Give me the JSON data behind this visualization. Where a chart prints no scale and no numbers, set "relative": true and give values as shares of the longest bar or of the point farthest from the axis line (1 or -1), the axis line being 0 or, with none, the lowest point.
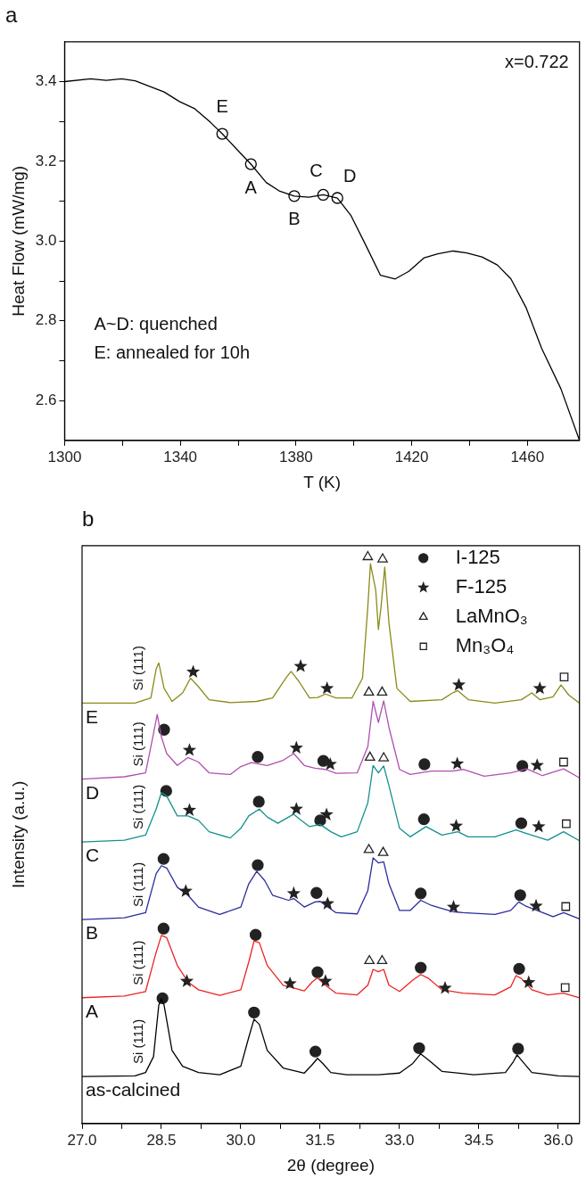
{
  "chart_data": [
    {
      "type": "line",
      "title": "a",
      "xlabel": "T (K)",
      "ylabel": "Heat Flow (mW/mg)",
      "xlim": [
        1300,
        1478
      ],
      "ylim": [
        2.5,
        3.5
      ],
      "xticks": [
        1300,
        {
          "value": 1320,
          "label": null
        },
        1340,
        {
          "value": 1360,
          "label": null
        },
        1380,
        {
          "value": 1400,
          "label": null
        },
        1420,
        {
          "value": 1440,
          "label": null
        },
        1460
      ],
      "yticks": [
        2.6,
        {
          "value": 2.7,
          "label": null
        },
        2.8,
        {
          "value": 2.9,
          "label": null
        },
        {
          "value": 3.0,
          "label": "3.0"
        },
        {
          "value": 3.1,
          "label": null
        },
        3.2,
        {
          "value": 3.3,
          "label": null
        },
        3.4
      ],
      "series": [
        {
          "color": "#000000",
          "x": [
            1300,
            1309,
            1314.4,
            1319.7,
            1324.4,
            1334.4,
            1339.7,
            1345,
            1350.4,
            1354.5,
            1359.7,
            1364.4,
            1369.7,
            1374.4,
            1379.4,
            1384.4,
            1389.4,
            1394.3,
            1399,
            1404.3,
            1409.2,
            1414.3,
            1419,
            1424.3,
            1429,
            1434.3,
            1439,
            1444.3,
            1449.6,
            1454.3,
            1459.6,
            1464.9,
            1471.6,
            1478
          ],
          "values": [
            3.4,
            3.407,
            3.403,
            3.407,
            3.402,
            3.374,
            3.35,
            3.332,
            3.298,
            3.269,
            3.229,
            3.193,
            3.147,
            3.125,
            3.113,
            3.11,
            3.116,
            3.108,
            3.064,
            2.987,
            2.914,
            2.905,
            2.924,
            2.958,
            2.968,
            2.975,
            2.97,
            2.96,
            2.94,
            2.905,
            2.832,
            2.731,
            2.629,
            2.5
          ]
        },
        {
          "type": "scatter",
          "marker": "circle",
          "color": "#000000",
          "x": [
            1354.5,
            1364.4,
            1379.4,
            1389.4,
            1394.3
          ],
          "values": [
            3.269,
            3.193,
            3.113,
            3.116,
            3.108
          ]
        }
      ],
      "annotations": [
        "x=0.722",
        "A~D: quenched",
        "E: annealed for 10h",
        "E",
        "A",
        "B",
        "C",
        "D"
      ]
    },
    {
      "type": "line",
      "title": "b",
      "xlabel": "2θ (degree)",
      "ylabel": "Intensity (a.u.)",
      "relative": true,
      "legend": "top right",
      "xlim": [
        27,
        36.4
      ],
      "xticks": [
        {
          "value": 27,
          "label": "27.0"
        },
        {
          "value": 27.75,
          "label": null
        },
        28.5,
        {
          "value": 29.25,
          "label": null
        },
        {
          "value": 30,
          "label": "30.0"
        },
        {
          "value": 30.75,
          "label": null
        },
        31.5,
        {
          "value": 32.25,
          "label": null
        },
        {
          "value": 33,
          "label": "33.0"
        },
        {
          "value": 33.75,
          "label": null
        },
        34.5,
        {
          "value": 35.25,
          "label": null
        },
        {
          "value": 36,
          "label": "36.0"
        }
      ],
      "series": [
        {
          "name": "E",
          "color": "#8a8a1a",
          "x": [
            27.0,
            28.0,
            28.3,
            28.4,
            28.45,
            28.55,
            28.7,
            28.9,
            29.05,
            29.2,
            29.4,
            29.8,
            30.3,
            30.6,
            30.85,
            30.95,
            31.1,
            31.3,
            31.45,
            31.6,
            31.8,
            32.1,
            32.3,
            32.4,
            32.45,
            32.55,
            32.6,
            32.65,
            32.72,
            32.8,
            32.95,
            33.2,
            33.8,
            34.0,
            34.1,
            34.3,
            34.8,
            35.3,
            35.5,
            35.65,
            35.9,
            36.05,
            36.2,
            36.4
          ],
          "values": [
            0.742,
            0.742,
            0.751,
            0.802,
            0.813,
            0.768,
            0.745,
            0.76,
            0.786,
            0.771,
            0.748,
            0.743,
            0.745,
            0.751,
            0.786,
            0.798,
            0.78,
            0.751,
            0.752,
            0.758,
            0.751,
            0.751,
            0.786,
            0.912,
            0.988,
            0.941,
            0.872,
            0.912,
            0.982,
            0.883,
            0.768,
            0.745,
            0.748,
            0.76,
            0.764,
            0.748,
            0.742,
            0.748,
            0.76,
            0.748,
            0.753,
            0.774,
            0.756,
            0.742
          ]
        },
        {
          "name": "D",
          "color": "#b050b0",
          "x": [
            27.0,
            27.8,
            28.2,
            28.35,
            28.42,
            28.5,
            28.6,
            28.8,
            29.0,
            29.2,
            29.4,
            29.8,
            30.0,
            30.2,
            30.5,
            30.8,
            31.0,
            31.2,
            31.4,
            31.6,
            31.8,
            32.2,
            32.4,
            32.5,
            32.6,
            32.7,
            32.8,
            33.0,
            33.2,
            33.6,
            34.0,
            34.2,
            34.6,
            35.1,
            35.4,
            35.7,
            36.1,
            36.4
          ],
          "values": [
            0.608,
            0.612,
            0.619,
            0.688,
            0.722,
            0.682,
            0.653,
            0.632,
            0.646,
            0.638,
            0.619,
            0.616,
            0.63,
            0.637,
            0.632,
            0.641,
            0.653,
            0.632,
            0.627,
            0.625,
            0.618,
            0.619,
            0.665,
            0.745,
            0.708,
            0.746,
            0.699,
            0.625,
            0.616,
            0.622,
            0.622,
            0.625,
            0.613,
            0.619,
            0.626,
            0.614,
            0.626,
            0.61
          ]
        },
        {
          "name": "C",
          "color": "#12918f",
          "x": [
            27.0,
            27.8,
            28.2,
            28.4,
            28.5,
            28.6,
            28.8,
            29.0,
            29.2,
            29.4,
            29.8,
            30.0,
            30.15,
            30.35,
            30.5,
            30.7,
            31.0,
            31.1,
            31.3,
            31.5,
            31.7,
            31.9,
            32.2,
            32.4,
            32.5,
            32.6,
            32.7,
            32.8,
            33.0,
            33.2,
            33.5,
            33.8,
            34.1,
            34.3,
            34.8,
            35.2,
            35.4,
            35.8,
            36.1,
            36.4
          ],
          "values": [
            0.497,
            0.5,
            0.509,
            0.555,
            0.584,
            0.578,
            0.543,
            0.543,
            0.535,
            0.515,
            0.504,
            0.521,
            0.543,
            0.555,
            0.541,
            0.53,
            0.546,
            0.538,
            0.524,
            0.528,
            0.515,
            0.506,
            0.515,
            0.566,
            0.632,
            0.619,
            0.631,
            0.596,
            0.521,
            0.506,
            0.524,
            0.509,
            0.515,
            0.506,
            0.506,
            0.518,
            0.512,
            0.5,
            0.515,
            0.499
          ]
        },
        {
          "name": "B",
          "color": "#2b2b9c",
          "x": [
            27.0,
            27.8,
            28.2,
            28.4,
            28.5,
            28.6,
            28.8,
            29.0,
            29.2,
            29.6,
            30.0,
            30.15,
            30.3,
            30.45,
            30.6,
            30.9,
            31.0,
            31.2,
            31.4,
            31.5,
            31.6,
            31.8,
            32.2,
            32.4,
            32.5,
            32.6,
            32.7,
            32.8,
            33.0,
            33.2,
            33.4,
            33.6,
            34.0,
            34.2,
            34.8,
            35.1,
            35.25,
            35.4,
            35.6,
            35.9,
            36.1,
            36.4
          ],
          "values": [
            0.36,
            0.363,
            0.372,
            0.441,
            0.455,
            0.451,
            0.417,
            0.403,
            0.382,
            0.369,
            0.382,
            0.423,
            0.445,
            0.429,
            0.403,
            0.394,
            0.397,
            0.382,
            0.391,
            0.392,
            0.385,
            0.372,
            0.37,
            0.411,
            0.469,
            0.46,
            0.462,
            0.423,
            0.376,
            0.376,
            0.394,
            0.385,
            0.374,
            0.372,
            0.369,
            0.376,
            0.391,
            0.383,
            0.376,
            0.365,
            0.372,
            0.361
          ]
        },
        {
          "name": "A",
          "color": "#ee2222",
          "x": [
            27.0,
            27.8,
            28.2,
            28.4,
            28.5,
            28.6,
            28.8,
            29.0,
            29.2,
            29.6,
            30.0,
            30.15,
            30.25,
            30.35,
            30.5,
            30.8,
            31.0,
            31.2,
            31.35,
            31.45,
            31.6,
            31.8,
            32.2,
            32.4,
            32.5,
            32.6,
            32.7,
            32.8,
            33.0,
            33.25,
            33.4,
            33.55,
            33.8,
            34.2,
            34.8,
            35.1,
            35.2,
            35.3,
            35.5,
            35.8,
            36.1,
            36.4
          ],
          "values": [
            0.222,
            0.225,
            0.233,
            0.302,
            0.332,
            0.328,
            0.279,
            0.25,
            0.236,
            0.226,
            0.236,
            0.285,
            0.322,
            0.319,
            0.279,
            0.244,
            0.239,
            0.234,
            0.25,
            0.257,
            0.244,
            0.23,
            0.227,
            0.244,
            0.272,
            0.268,
            0.272,
            0.244,
            0.233,
            0.253,
            0.263,
            0.256,
            0.236,
            0.23,
            0.227,
            0.241,
            0.261,
            0.256,
            0.236,
            0.227,
            0.23,
            0.222
          ]
        },
        {
          "name": "as-calcined",
          "color": "#000000",
          "x": [
            27.0,
            28.0,
            28.2,
            28.35,
            28.45,
            28.5,
            28.55,
            28.7,
            28.9,
            29.2,
            29.6,
            30.0,
            30.15,
            30.25,
            30.35,
            30.5,
            30.8,
            31.2,
            31.35,
            31.45,
            31.55,
            31.7,
            32.0,
            32.6,
            33.0,
            33.25,
            33.4,
            33.55,
            33.8,
            34.4,
            35.0,
            35.15,
            35.22,
            35.3,
            35.5,
            36.0,
            36.4
          ],
          "values": [
            0.083,
            0.084,
            0.09,
            0.118,
            0.209,
            0.22,
            0.209,
            0.129,
            0.101,
            0.09,
            0.086,
            0.101,
            0.152,
            0.184,
            0.175,
            0.129,
            0.098,
            0.089,
            0.104,
            0.115,
            0.106,
            0.09,
            0.086,
            0.086,
            0.089,
            0.106,
            0.123,
            0.112,
            0.092,
            0.086,
            0.09,
            0.109,
            0.121,
            0.112,
            0.09,
            0.084,
            0.083
          ]
        },
        {
          "name": "I-125",
          "type": "scatter",
          "marker": "circle",
          "color": "#222222",
          "x": [
            28.55,
            30.32,
            31.56,
            33.47,
            35.32,
            28.59,
            30.34,
            31.5,
            33.46,
            35.3,
            28.54,
            30.32,
            31.43,
            33.4,
            35.28,
            28.54,
            30.28,
            31.45,
            33.4,
            35.26,
            28.52,
            30.25,
            31.41,
            33.37,
            35.24
          ],
          "values": [
            0.695,
            0.647,
            0.64,
            0.634,
            0.631,
            0.587,
            0.568,
            0.535,
            0.537,
            0.53,
            0.467,
            0.456,
            0.407,
            0.406,
            0.403,
            0.344,
            0.333,
            0.267,
            0.275,
            0.273,
            0.221,
            0.196,
            0.127,
            0.133,
            0.132
          ]
        },
        {
          "name": "F-125",
          "type": "scatter",
          "marker": "star",
          "color": "#222222",
          "x": [
            29.1,
            31.13,
            31.63,
            34.12,
            35.65,
            29.03,
            31.05,
            31.69,
            34.09,
            35.6,
            29.03,
            31.05,
            31.62,
            34.07,
            35.63,
            28.96,
            31.0,
            31.64,
            34.02,
            35.58,
            28.98,
            30.93,
            31.6,
            33.86,
            35.44
          ],
          "values": [
            0.797,
            0.807,
            0.768,
            0.774,
            0.768,
            0.659,
            0.663,
            0.634,
            0.635,
            0.632,
            0.553,
            0.555,
            0.545,
            0.525,
            0.524,
            0.41,
            0.406,
            0.388,
            0.382,
            0.384,
            0.251,
            0.247,
            0.251,
            0.239,
            0.249
          ]
        },
        {
          "name": "LaMnO₃",
          "type": "scatter",
          "marker": "triangle",
          "color": "#222222",
          "x": [
            32.4,
            32.68,
            32.42,
            32.67,
            32.44,
            32.7,
            32.42,
            32.69,
            32.43,
            32.67
          ],
          "values": [
            1.0,
            0.996,
            0.761,
            0.761,
            0.646,
            0.645,
            0.483,
            0.478,
            0.287,
            0.287
          ]
        },
        {
          "name": "Mn₃O₄",
          "type": "scatter",
          "marker": "square",
          "color": "#222222",
          "x": [
            36.11,
            36.1,
            36.15,
            36.14,
            36.13
          ],
          "values": [
            0.788,
            0.638,
            0.529,
            0.383,
            0.24
          ]
        }
      ],
      "annotations": [
        "Si (111)",
        "Si (111)",
        "Si (111)",
        "Si (111)",
        "Si (111)",
        "Si (111)"
      ]
    }
  ]
}
